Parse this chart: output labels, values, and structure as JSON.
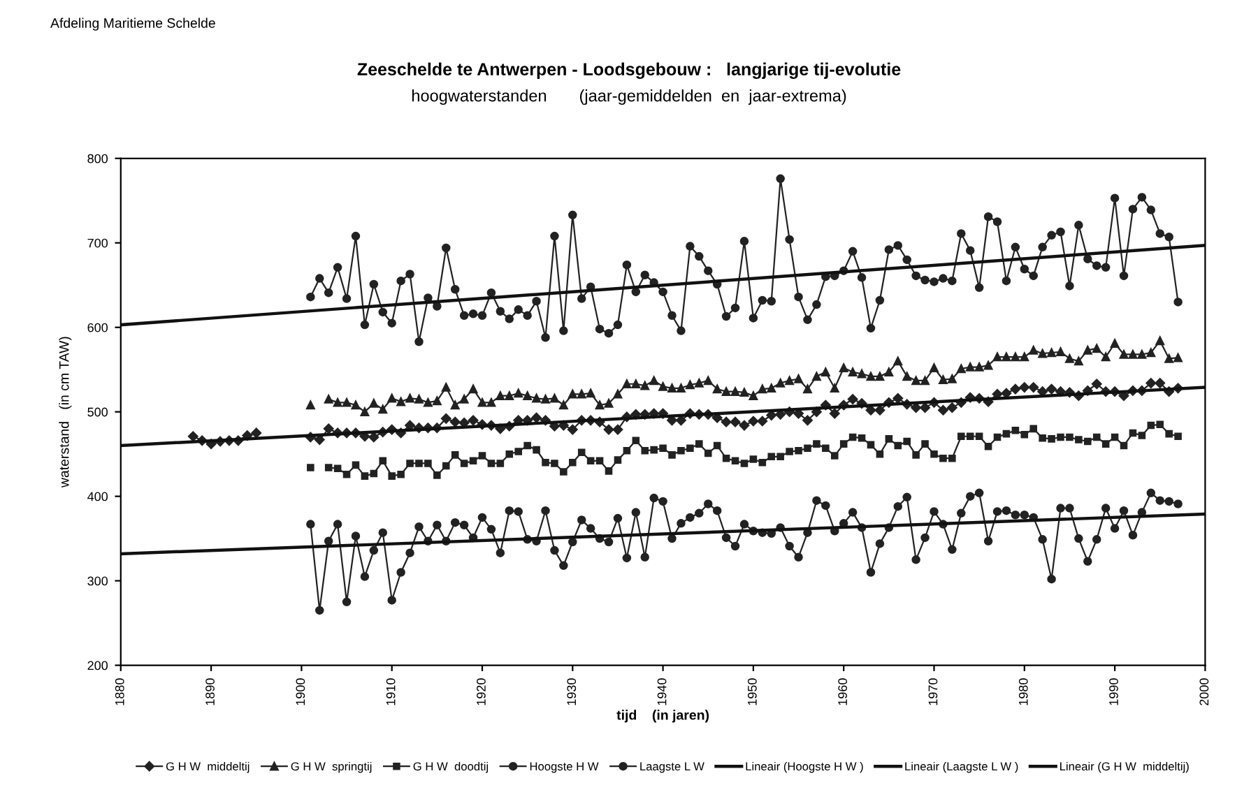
{
  "chart_data": {
    "type": "line",
    "title": "Zeeschelde te Antwerpen - Loodsgebouw :   langjarige tij-evolutie",
    "subtitle": "hoogwaterstanden       (jaar-gemiddelden  en  jaar-extrema)",
    "xlabel": "tijd    (in jaren)",
    "ylabel": "waterstand   (in cm TAW)",
    "annotations": [
      "Afdeling Maritieme Schelde"
    ],
    "xlim": [
      1880,
      2000
    ],
    "xticks": [
      1880,
      1890,
      1900,
      1910,
      1920,
      1930,
      1940,
      1950,
      1960,
      1970,
      1980,
      1990,
      2000
    ],
    "ylim": [
      200,
      800
    ],
    "yticks": [
      200,
      300,
      400,
      500,
      600,
      700,
      800
    ],
    "grid": false,
    "legend": "bottom",
    "series": [
      {
        "name": "G H W  middeltij",
        "color": "#222222",
        "marker": "diamond",
        "x": [
          1888,
          1889,
          1890,
          1891,
          1892,
          1893,
          1894,
          1895,
          1896,
          1897,
          1898,
          1899,
          1900,
          1901,
          1902,
          1903,
          1904,
          1905,
          1906,
          1907,
          1908,
          1909,
          1910,
          1911,
          1912,
          1913,
          1914,
          1915,
          1916,
          1917,
          1918,
          1919,
          1920,
          1921,
          1922,
          1923,
          1924,
          1925,
          1926,
          1927,
          1928,
          1929,
          1930,
          1931,
          1932,
          1933,
          1934,
          1935,
          1936,
          1937,
          1938,
          1939,
          1940,
          1941,
          1942,
          1943,
          1944,
          1945,
          1946,
          1947,
          1948,
          1949,
          1950,
          1951,
          1952,
          1953,
          1954,
          1955,
          1956,
          1957,
          1958,
          1959,
          1960,
          1961,
          1962,
          1963,
          1964,
          1965,
          1966,
          1967,
          1968,
          1969,
          1970,
          1971,
          1972,
          1973,
          1974,
          1975,
          1976,
          1977,
          1978,
          1979,
          1980,
          1981,
          1982,
          1983,
          1984,
          1985,
          1986,
          1987,
          1988,
          1989,
          1990,
          1991,
          1992,
          1993,
          1994,
          1995,
          1996,
          1997
        ],
        "values": [
          471,
          466,
          462,
          465,
          466,
          466,
          472,
          475,
          null,
          null,
          null,
          null,
          null,
          470,
          467,
          480,
          475,
          475,
          475,
          471,
          470,
          476,
          479,
          475,
          484,
          481,
          481,
          481,
          492,
          488,
          487,
          490,
          485,
          484,
          480,
          483,
          490,
          490,
          493,
          490,
          483,
          484,
          479,
          490,
          490,
          488,
          479,
          479,
          494,
          497,
          497,
          498,
          498,
          490,
          490,
          498,
          497,
          497,
          493,
          488,
          488,
          484,
          489,
          489,
          496,
          497,
          500,
          498,
          490,
          500,
          508,
          498,
          508,
          515,
          510,
          502,
          502,
          511,
          516,
          509,
          505,
          505,
          511,
          502,
          505,
          511,
          517,
          516,
          512,
          521,
          522,
          527,
          529,
          529,
          524,
          527,
          524,
          523,
          519,
          525,
          533,
          524,
          524,
          519,
          525,
          525,
          534,
          534,
          524,
          528
        ]
      },
      {
        "name": "G H W  springtij",
        "color": "#222222",
        "marker": "triangle",
        "x": [
          1901,
          1902,
          1903,
          1904,
          1905,
          1906,
          1907,
          1908,
          1909,
          1910,
          1911,
          1912,
          1913,
          1914,
          1915,
          1916,
          1917,
          1918,
          1919,
          1920,
          1921,
          1922,
          1923,
          1924,
          1925,
          1926,
          1927,
          1928,
          1929,
          1930,
          1931,
          1932,
          1933,
          1934,
          1935,
          1936,
          1937,
          1938,
          1939,
          1940,
          1941,
          1942,
          1943,
          1944,
          1945,
          1946,
          1947,
          1948,
          1949,
          1950,
          1951,
          1952,
          1953,
          1954,
          1955,
          1956,
          1957,
          1958,
          1959,
          1960,
          1961,
          1962,
          1963,
          1964,
          1965,
          1966,
          1967,
          1968,
          1969,
          1970,
          1971,
          1972,
          1973,
          1974,
          1975,
          1976,
          1977,
          1978,
          1979,
          1980,
          1981,
          1982,
          1983,
          1984,
          1985,
          1986,
          1987,
          1988,
          1989,
          1990,
          1991,
          1992,
          1993,
          1994,
          1995,
          1996,
          1997
        ],
        "values": [
          508,
          null,
          515,
          511,
          511,
          508,
          500,
          510,
          503,
          516,
          512,
          516,
          515,
          511,
          513,
          529,
          508,
          515,
          527,
          511,
          511,
          519,
          519,
          522,
          519,
          516,
          515,
          516,
          508,
          521,
          521,
          522,
          508,
          510,
          521,
          533,
          533,
          531,
          537,
          530,
          528,
          528,
          532,
          534,
          537,
          527,
          524,
          524,
          523,
          519,
          527,
          528,
          534,
          537,
          539,
          527,
          542,
          547,
          528,
          552,
          547,
          545,
          542,
          542,
          547,
          560,
          542,
          537,
          537,
          552,
          538,
          539,
          551,
          553,
          553,
          555,
          565,
          565,
          565,
          565,
          573,
          569,
          570,
          571,
          563,
          560,
          573,
          575,
          565,
          581,
          568,
          568,
          568,
          570,
          584,
          563,
          564
        ]
      },
      {
        "name": "G H W  doodtij",
        "color": "#222222",
        "marker": "square",
        "x": [
          1901,
          1902,
          1903,
          1904,
          1905,
          1906,
          1907,
          1908,
          1909,
          1910,
          1911,
          1912,
          1913,
          1914,
          1915,
          1916,
          1917,
          1918,
          1919,
          1920,
          1921,
          1922,
          1923,
          1924,
          1925,
          1926,
          1927,
          1928,
          1929,
          1930,
          1931,
          1932,
          1933,
          1934,
          1935,
          1936,
          1937,
          1938,
          1939,
          1940,
          1941,
          1942,
          1943,
          1944,
          1945,
          1946,
          1947,
          1948,
          1949,
          1950,
          1951,
          1952,
          1953,
          1954,
          1955,
          1956,
          1957,
          1958,
          1959,
          1960,
          1961,
          1962,
          1963,
          1964,
          1965,
          1966,
          1967,
          1968,
          1969,
          1970,
          1971,
          1972,
          1973,
          1974,
          1975,
          1976,
          1977,
          1978,
          1979,
          1980,
          1981,
          1982,
          1983,
          1984,
          1985,
          1986,
          1987,
          1988,
          1989,
          1990,
          1991,
          1992,
          1993,
          1994,
          1995,
          1996,
          1997
        ],
        "values": [
          434,
          null,
          434,
          433,
          426,
          437,
          424,
          427,
          442,
          424,
          426,
          439,
          439,
          439,
          425,
          436,
          449,
          439,
          442,
          448,
          439,
          439,
          450,
          453,
          460,
          455,
          440,
          439,
          429,
          440,
          452,
          442,
          442,
          430,
          443,
          454,
          466,
          454,
          455,
          457,
          449,
          454,
          457,
          462,
          451,
          460,
          445,
          442,
          439,
          444,
          440,
          447,
          447,
          453,
          454,
          457,
          462,
          457,
          448,
          462,
          470,
          469,
          461,
          450,
          468,
          460,
          465,
          449,
          462,
          450,
          445,
          445,
          471,
          471,
          471,
          459,
          470,
          474,
          478,
          473,
          480,
          469,
          468,
          470,
          470,
          467,
          465,
          470,
          462,
          470,
          460,
          475,
          472,
          484,
          485,
          474,
          471
        ]
      },
      {
        "name": "Hoogste H W",
        "color": "#222222",
        "marker": "circle",
        "x": [
          1901,
          1902,
          1903,
          1904,
          1905,
          1906,
          1907,
          1908,
          1909,
          1910,
          1911,
          1912,
          1913,
          1914,
          1915,
          1916,
          1917,
          1918,
          1919,
          1920,
          1921,
          1922,
          1923,
          1924,
          1925,
          1926,
          1927,
          1928,
          1929,
          1930,
          1931,
          1932,
          1933,
          1934,
          1935,
          1936,
          1937,
          1938,
          1939,
          1940,
          1941,
          1942,
          1943,
          1944,
          1945,
          1946,
          1947,
          1948,
          1949,
          1950,
          1951,
          1952,
          1953,
          1954,
          1955,
          1956,
          1957,
          1958,
          1959,
          1960,
          1961,
          1962,
          1963,
          1964,
          1965,
          1966,
          1967,
          1968,
          1969,
          1970,
          1971,
          1972,
          1973,
          1974,
          1975,
          1976,
          1977,
          1978,
          1979,
          1980,
          1981,
          1982,
          1983,
          1984,
          1985,
          1986,
          1987,
          1988,
          1989,
          1990,
          1991,
          1992,
          1993,
          1994,
          1995,
          1996,
          1997
        ],
        "values": [
          636,
          658,
          641,
          671,
          634,
          708,
          603,
          651,
          618,
          605,
          655,
          663,
          583,
          635,
          625,
          694,
          645,
          614,
          616,
          614,
          641,
          619,
          610,
          621,
          614,
          631,
          588,
          708,
          596,
          733,
          634,
          648,
          598,
          593,
          603,
          674,
          642,
          662,
          653,
          642,
          614,
          596,
          696,
          684,
          667,
          651,
          613,
          623,
          702,
          611,
          632,
          631,
          776,
          704,
          636,
          609,
          627,
          660,
          661,
          667,
          690,
          659,
          599,
          632,
          692,
          697,
          680,
          661,
          656,
          654,
          658,
          655,
          711,
          691,
          647,
          731,
          725,
          655,
          695,
          669,
          661,
          695,
          709,
          713,
          649,
          721,
          681,
          673,
          671,
          753,
          661,
          740,
          754,
          739,
          711,
          707,
          630
        ]
      },
      {
        "name": "Laagste L W",
        "color": "#222222",
        "marker": "circle",
        "x": [
          1901,
          1902,
          1903,
          1904,
          1905,
          1906,
          1907,
          1908,
          1909,
          1910,
          1911,
          1912,
          1913,
          1914,
          1915,
          1916,
          1917,
          1918,
          1919,
          1920,
          1921,
          1922,
          1923,
          1924,
          1925,
          1926,
          1927,
          1928,
          1929,
          1930,
          1931,
          1932,
          1933,
          1934,
          1935,
          1936,
          1937,
          1938,
          1939,
          1940,
          1941,
          1942,
          1943,
          1944,
          1945,
          1946,
          1947,
          1948,
          1949,
          1950,
          1951,
          1952,
          1953,
          1954,
          1955,
          1956,
          1957,
          1958,
          1959,
          1960,
          1961,
          1962,
          1963,
          1964,
          1965,
          1966,
          1967,
          1968,
          1969,
          1970,
          1971,
          1972,
          1973,
          1974,
          1975,
          1976,
          1977,
          1978,
          1979,
          1980,
          1981,
          1982,
          1983,
          1984,
          1985,
          1986,
          1987,
          1988,
          1989,
          1990,
          1991,
          1992,
          1993,
          1994,
          1995,
          1996,
          1997
        ],
        "values": [
          367,
          265,
          347,
          367,
          275,
          353,
          305,
          336,
          357,
          277,
          310,
          333,
          364,
          347,
          366,
          347,
          369,
          366,
          351,
          375,
          361,
          333,
          383,
          382,
          349,
          347,
          383,
          336,
          318,
          346,
          372,
          362,
          350,
          346,
          374,
          327,
          381,
          328,
          398,
          394,
          350,
          368,
          375,
          380,
          391,
          383,
          351,
          341,
          367,
          359,
          357,
          356,
          363,
          341,
          328,
          357,
          395,
          389,
          359,
          368,
          381,
          363,
          310,
          344,
          363,
          388,
          399,
          325,
          351,
          382,
          367,
          337,
          380,
          400,
          404,
          347,
          382,
          383,
          378,
          378,
          375,
          349,
          302,
          386,
          386,
          350,
          323,
          349,
          386,
          362,
          383,
          354,
          381,
          404,
          395,
          394,
          391
        ]
      },
      {
        "name": "Lineair (Hoogste H W )",
        "color": "#111111",
        "marker": "none",
        "x": [
          1880,
          2000
        ],
        "values": [
          603,
          697
        ]
      },
      {
        "name": "Lineair (Laagste L W )",
        "color": "#111111",
        "marker": "none",
        "x": [
          1880,
          2000
        ],
        "values": [
          332,
          379
        ]
      },
      {
        "name": "Lineair (G H W  middeltij)",
        "color": "#111111",
        "marker": "none",
        "x": [
          1880,
          2000
        ],
        "values": [
          460,
          529
        ]
      }
    ]
  }
}
